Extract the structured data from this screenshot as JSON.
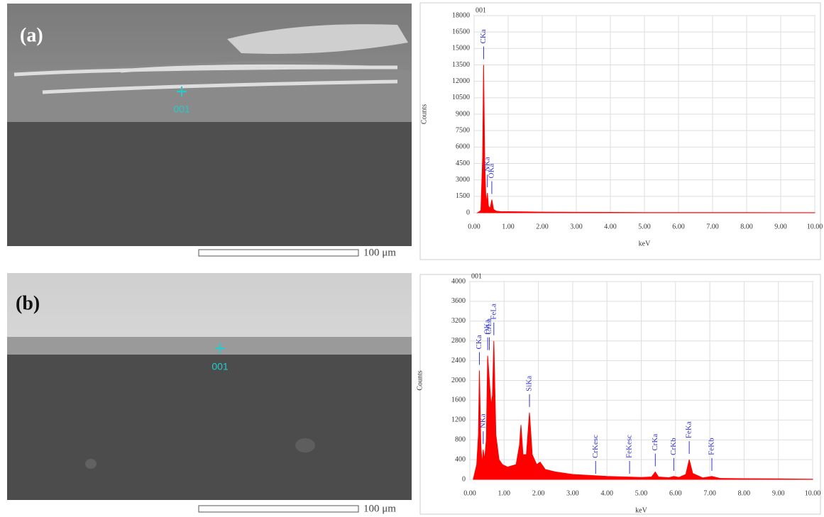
{
  "images": [
    {
      "label": "(a)",
      "marker": "001",
      "scale": "100 μm"
    },
    {
      "label": "(b)",
      "marker": "001",
      "scale": "100 μm"
    }
  ],
  "chart_data": [
    {
      "type": "area",
      "title": "001",
      "x_label": "keV",
      "y_label": "Counts",
      "color": "#ff0000",
      "grid": true,
      "xlim": [
        0,
        10
      ],
      "xticks": [
        {
          "value": 0,
          "label": "0.00"
        },
        {
          "value": 1,
          "label": "1.00"
        },
        {
          "value": 2,
          "label": "2.00"
        },
        {
          "value": 3,
          "label": "3.00"
        },
        {
          "value": 4,
          "label": "4.00"
        },
        {
          "value": 5,
          "label": "5.00"
        },
        {
          "value": 6,
          "label": "6.00"
        },
        {
          "value": 7,
          "label": "7.00"
        },
        {
          "value": 8,
          "label": "8.00"
        },
        {
          "value": 9,
          "label": "9.00"
        },
        {
          "value": 10,
          "label": "10.00"
        }
      ],
      "ylim": [
        0,
        18000
      ],
      "yticks": [
        0,
        1500,
        3000,
        4500,
        6000,
        7500,
        9000,
        10500,
        12000,
        13500,
        15000,
        16500,
        18000
      ],
      "x": [
        0.1,
        0.2,
        0.25,
        0.28,
        0.31,
        0.35,
        0.39,
        0.42,
        0.47,
        0.52,
        0.57,
        0.65,
        0.8,
        1.0,
        1.5,
        2,
        3,
        4,
        5,
        6,
        7,
        8,
        9,
        10
      ],
      "values": [
        0,
        200,
        5000,
        13500,
        5000,
        800,
        1800,
        600,
        400,
        1200,
        300,
        150,
        100,
        100,
        80,
        60,
        40,
        30,
        20,
        15,
        10,
        10,
        5,
        5
      ],
      "annotations": [
        {
          "text": "CKa",
          "x": 0.28
        },
        {
          "text": "NKa",
          "x": 0.39
        },
        {
          "text": "OKa",
          "x": 0.52
        }
      ]
    },
    {
      "type": "area",
      "title": "001",
      "x_label": "keV",
      "y_label": "Counts",
      "color": "#ff0000",
      "grid": true,
      "xlim": [
        0,
        10
      ],
      "xticks": [
        {
          "value": 0,
          "label": "0.00"
        },
        {
          "value": 1,
          "label": "1.00"
        },
        {
          "value": 2,
          "label": "2.00"
        },
        {
          "value": 3,
          "label": "3.00"
        },
        {
          "value": 4,
          "label": "4.00"
        },
        {
          "value": 5,
          "label": "5.00"
        },
        {
          "value": 6,
          "label": "6.00"
        },
        {
          "value": 7,
          "label": "7.00"
        },
        {
          "value": 8,
          "label": "8.00"
        },
        {
          "value": 9,
          "label": "9.00"
        },
        {
          "value": 10,
          "label": "10.00"
        }
      ],
      "ylim": [
        0,
        4000
      ],
      "yticks": [
        0,
        400,
        800,
        1200,
        1600,
        2000,
        2400,
        2800,
        3200,
        3600,
        4000
      ],
      "x": [
        0.1,
        0.2,
        0.25,
        0.28,
        0.32,
        0.36,
        0.39,
        0.43,
        0.48,
        0.52,
        0.57,
        0.62,
        0.66,
        0.7,
        0.76,
        0.85,
        0.95,
        1.1,
        1.35,
        1.45,
        1.49,
        1.55,
        1.65,
        1.74,
        1.82,
        1.95,
        2.05,
        2.2,
        2.5,
        3.0,
        3.5,
        4.0,
        4.5,
        5.0,
        5.3,
        5.41,
        5.5,
        5.8,
        5.95,
        6.1,
        6.3,
        6.4,
        6.5,
        6.8,
        7.06,
        7.3,
        8,
        9,
        10
      ],
      "values": [
        0,
        300,
        900,
        2200,
        700,
        300,
        600,
        400,
        800,
        2500,
        2000,
        1500,
        1700,
        2800,
        900,
        400,
        300,
        250,
        300,
        700,
        1100,
        500,
        500,
        1350,
        500,
        300,
        350,
        200,
        150,
        100,
        80,
        60,
        50,
        40,
        50,
        150,
        50,
        35,
        60,
        40,
        100,
        400,
        120,
        30,
        60,
        20,
        15,
        10,
        5
      ],
      "annotations": [
        {
          "text": "CKa",
          "x": 0.28
        },
        {
          "text": "NKa",
          "x": 0.39
        },
        {
          "text": "OKa",
          "x": 0.52
        },
        {
          "text": "CrLa",
          "x": 0.57
        },
        {
          "text": "FeLa",
          "x": 0.7
        },
        {
          "text": "SiKa",
          "x": 1.74
        },
        {
          "text": "CrKesc",
          "x": 3.67
        },
        {
          "text": "FeKesc",
          "x": 4.66
        },
        {
          "text": "CrKa",
          "x": 5.41
        },
        {
          "text": "CrKb",
          "x": 5.95
        },
        {
          "text": "FeKa",
          "x": 6.4
        },
        {
          "text": "FeKb",
          "x": 7.06
        }
      ]
    }
  ]
}
